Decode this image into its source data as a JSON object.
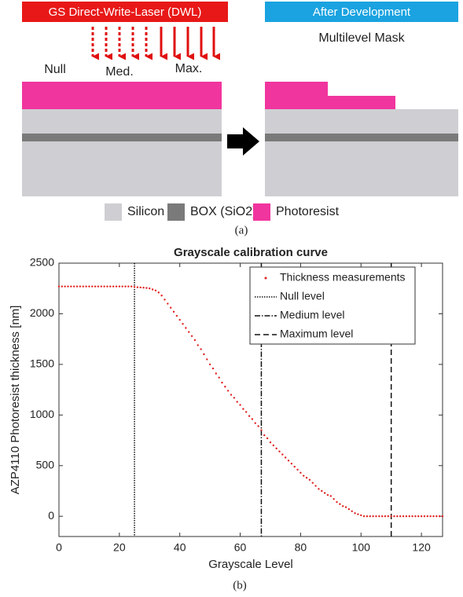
{
  "diagram": {
    "banner_left": "GS Direct-Write-Laser (DWL)",
    "banner_right": "After Development",
    "mask_label": "Multilevel Mask",
    "dose_labels": [
      "Null",
      "Med.",
      "Max."
    ],
    "legend": [
      "Silicon",
      "BOX (SiO2)",
      "Photoresist"
    ],
    "caption": "(a)"
  },
  "chart_data": {
    "type": "scatter",
    "title": "Grayscale calibration curve",
    "caption": "(b)",
    "xlabel": "Grayscale Level",
    "ylabel": "AZP4110 Photoresist thickness [nm]",
    "xlim": [
      0,
      127
    ],
    "ylim": [
      -200,
      2500
    ],
    "xticks": [
      0,
      20,
      40,
      60,
      80,
      100,
      120
    ],
    "yticks": [
      0,
      500,
      1000,
      1500,
      2000,
      2500
    ],
    "x": [
      0,
      1,
      2,
      3,
      4,
      5,
      6,
      7,
      8,
      9,
      10,
      11,
      12,
      13,
      14,
      15,
      16,
      17,
      18,
      19,
      20,
      21,
      22,
      23,
      24,
      25,
      26,
      27,
      28,
      29,
      30,
      31,
      32,
      33,
      34,
      35,
      36,
      37,
      38,
      39,
      40,
      41,
      42,
      43,
      44,
      45,
      46,
      47,
      48,
      49,
      50,
      51,
      52,
      53,
      54,
      55,
      56,
      57,
      58,
      59,
      60,
      61,
      62,
      63,
      64,
      65,
      66,
      67,
      68,
      69,
      70,
      71,
      72,
      73,
      74,
      75,
      76,
      77,
      78,
      79,
      80,
      81,
      82,
      83,
      84,
      85,
      86,
      87,
      88,
      89,
      90,
      91,
      92,
      93,
      94,
      95,
      96,
      97,
      98,
      99,
      100,
      101,
      102,
      103,
      104,
      105,
      106,
      107,
      108,
      109,
      110,
      111,
      112,
      113,
      114,
      115,
      116,
      117,
      118,
      119,
      120,
      121,
      122,
      123,
      124,
      125,
      126,
      127
    ],
    "series": [
      {
        "name": "Thickness measurements",
        "color": "#e02020",
        "values": [
          2270,
          2270,
          2270,
          2270,
          2270,
          2270,
          2270,
          2270,
          2270,
          2270,
          2270,
          2270,
          2270,
          2270,
          2270,
          2270,
          2270,
          2270,
          2270,
          2270,
          2270,
          2270,
          2270,
          2270,
          2270,
          2265,
          2262,
          2260,
          2258,
          2255,
          2250,
          2240,
          2230,
          2210,
          2180,
          2140,
          2100,
          2060,
          2020,
          1980,
          1940,
          1900,
          1860,
          1820,
          1780,
          1740,
          1690,
          1650,
          1600,
          1550,
          1500,
          1460,
          1410,
          1370,
          1320,
          1280,
          1240,
          1200,
          1170,
          1130,
          1100,
          1060,
          1030,
          990,
          960,
          920,
          890,
          850,
          800,
          770,
          730,
          700,
          670,
          640,
          610,
          580,
          550,
          520,
          490,
          460,
          430,
          400,
          380,
          360,
          330,
          300,
          270,
          250,
          230,
          210,
          200,
          170,
          140,
          120,
          100,
          90,
          70,
          50,
          30,
          20,
          10,
          0,
          0,
          0,
          0,
          0,
          0,
          0,
          0,
          0,
          0,
          0,
          0,
          0,
          0,
          0,
          0,
          0,
          0,
          0,
          0,
          0,
          0,
          0,
          0,
          0,
          0,
          0
        ]
      }
    ],
    "reference_lines": [
      {
        "name": "Null level",
        "x": 25,
        "dash": "dotted"
      },
      {
        "name": "Medium level",
        "x": 67,
        "dash": "dashdot"
      },
      {
        "name": "Maximum level",
        "x": 110,
        "dash": "dashed"
      }
    ],
    "legend": "upper right",
    "grid": false
  }
}
